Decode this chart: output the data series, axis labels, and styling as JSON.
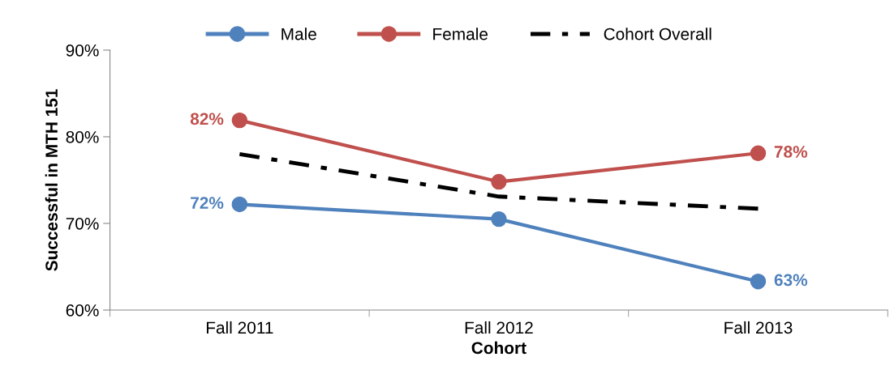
{
  "chart_data": {
    "type": "line",
    "xlabel": "Cohort",
    "ylabel": "Successful in MTH 151",
    "categories": [
      "Fall 2011",
      "Fall 2012",
      "Fall 2013"
    ],
    "series": [
      {
        "name": "Male",
        "color": "#4f81bd",
        "values": [
          72.2,
          70.5,
          63.3
        ],
        "value_labels": [
          "72%",
          null,
          "63%"
        ],
        "marker": "circle",
        "line_style": "solid"
      },
      {
        "name": "Female",
        "color": "#c0504d",
        "values": [
          81.9,
          74.8,
          78.1
        ],
        "value_labels": [
          "82%",
          null,
          "78%"
        ],
        "marker": "circle",
        "line_style": "solid"
      },
      {
        "name": "Cohort Overall",
        "color": "#000000",
        "values": [
          78.0,
          73.1,
          71.7
        ],
        "marker": "none",
        "line_style": "dashdot"
      }
    ],
    "ylim": [
      60,
      90
    ],
    "yticks": [
      {
        "value": 60,
        "label": "60%"
      },
      {
        "value": 70,
        "label": "70%"
      },
      {
        "value": 80,
        "label": "80%"
      },
      {
        "value": 90,
        "label": "90%"
      }
    ],
    "grid": false,
    "legend": "top"
  }
}
